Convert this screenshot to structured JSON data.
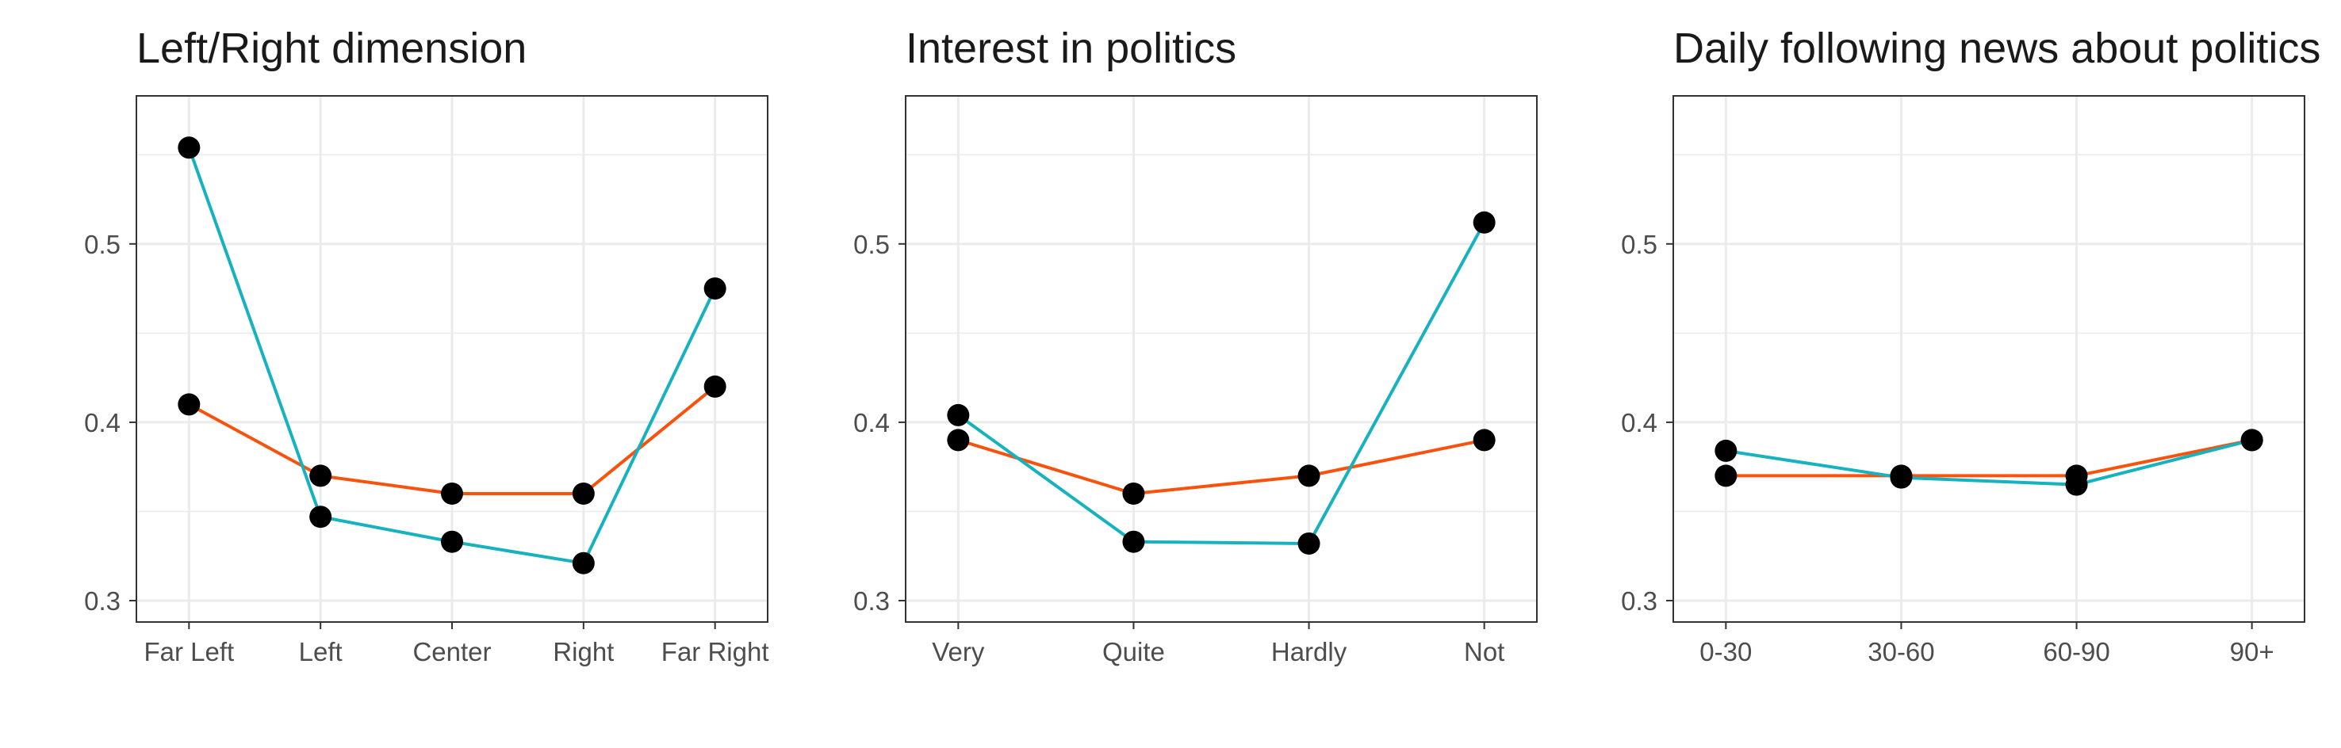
{
  "colors": {
    "series_a": "#F8520C",
    "series_b": "#16B2BF",
    "marker": "#000000",
    "grid": "#EBEBEB",
    "frame": "#333333"
  },
  "chart_data": [
    {
      "type": "line",
      "title": "Left/Right dimension",
      "categories": [
        "Far Left",
        "Left",
        "Center",
        "Right",
        "Far Right"
      ],
      "series": [
        {
          "values": [
            0.41,
            0.37,
            0.36,
            0.36,
            0.42
          ],
          "color": "#F8520C"
        },
        {
          "values": [
            0.554,
            0.347,
            0.333,
            0.321,
            0.475
          ],
          "color": "#16B2BF"
        }
      ],
      "ylim": [
        0.288,
        0.583
      ],
      "yticks": [
        "0.3",
        "0.4",
        "0.5"
      ],
      "grid": true
    },
    {
      "type": "line",
      "title": "Interest in politics",
      "categories": [
        "Very",
        "Quite",
        "Hardly",
        "Not"
      ],
      "series": [
        {
          "values": [
            0.39,
            0.36,
            0.37,
            0.39
          ],
          "color": "#F8520C"
        },
        {
          "values": [
            0.404,
            0.333,
            0.332,
            0.512
          ],
          "color": "#16B2BF"
        }
      ],
      "ylim": [
        0.288,
        0.583
      ],
      "yticks": [
        "0.3",
        "0.4",
        "0.5"
      ],
      "grid": true
    },
    {
      "type": "line",
      "title": "Daily following news about politics",
      "categories": [
        "0-30",
        "30-60",
        "60-90",
        "90+"
      ],
      "series": [
        {
          "values": [
            0.37,
            0.37,
            0.37,
            0.39
          ],
          "color": "#F8520C"
        },
        {
          "values": [
            0.384,
            0.369,
            0.365,
            0.39
          ],
          "color": "#16B2BF"
        }
      ],
      "ylim": [
        0.288,
        0.583
      ],
      "yticks": [
        "0.3",
        "0.4",
        "0.5"
      ],
      "grid": true
    }
  ]
}
